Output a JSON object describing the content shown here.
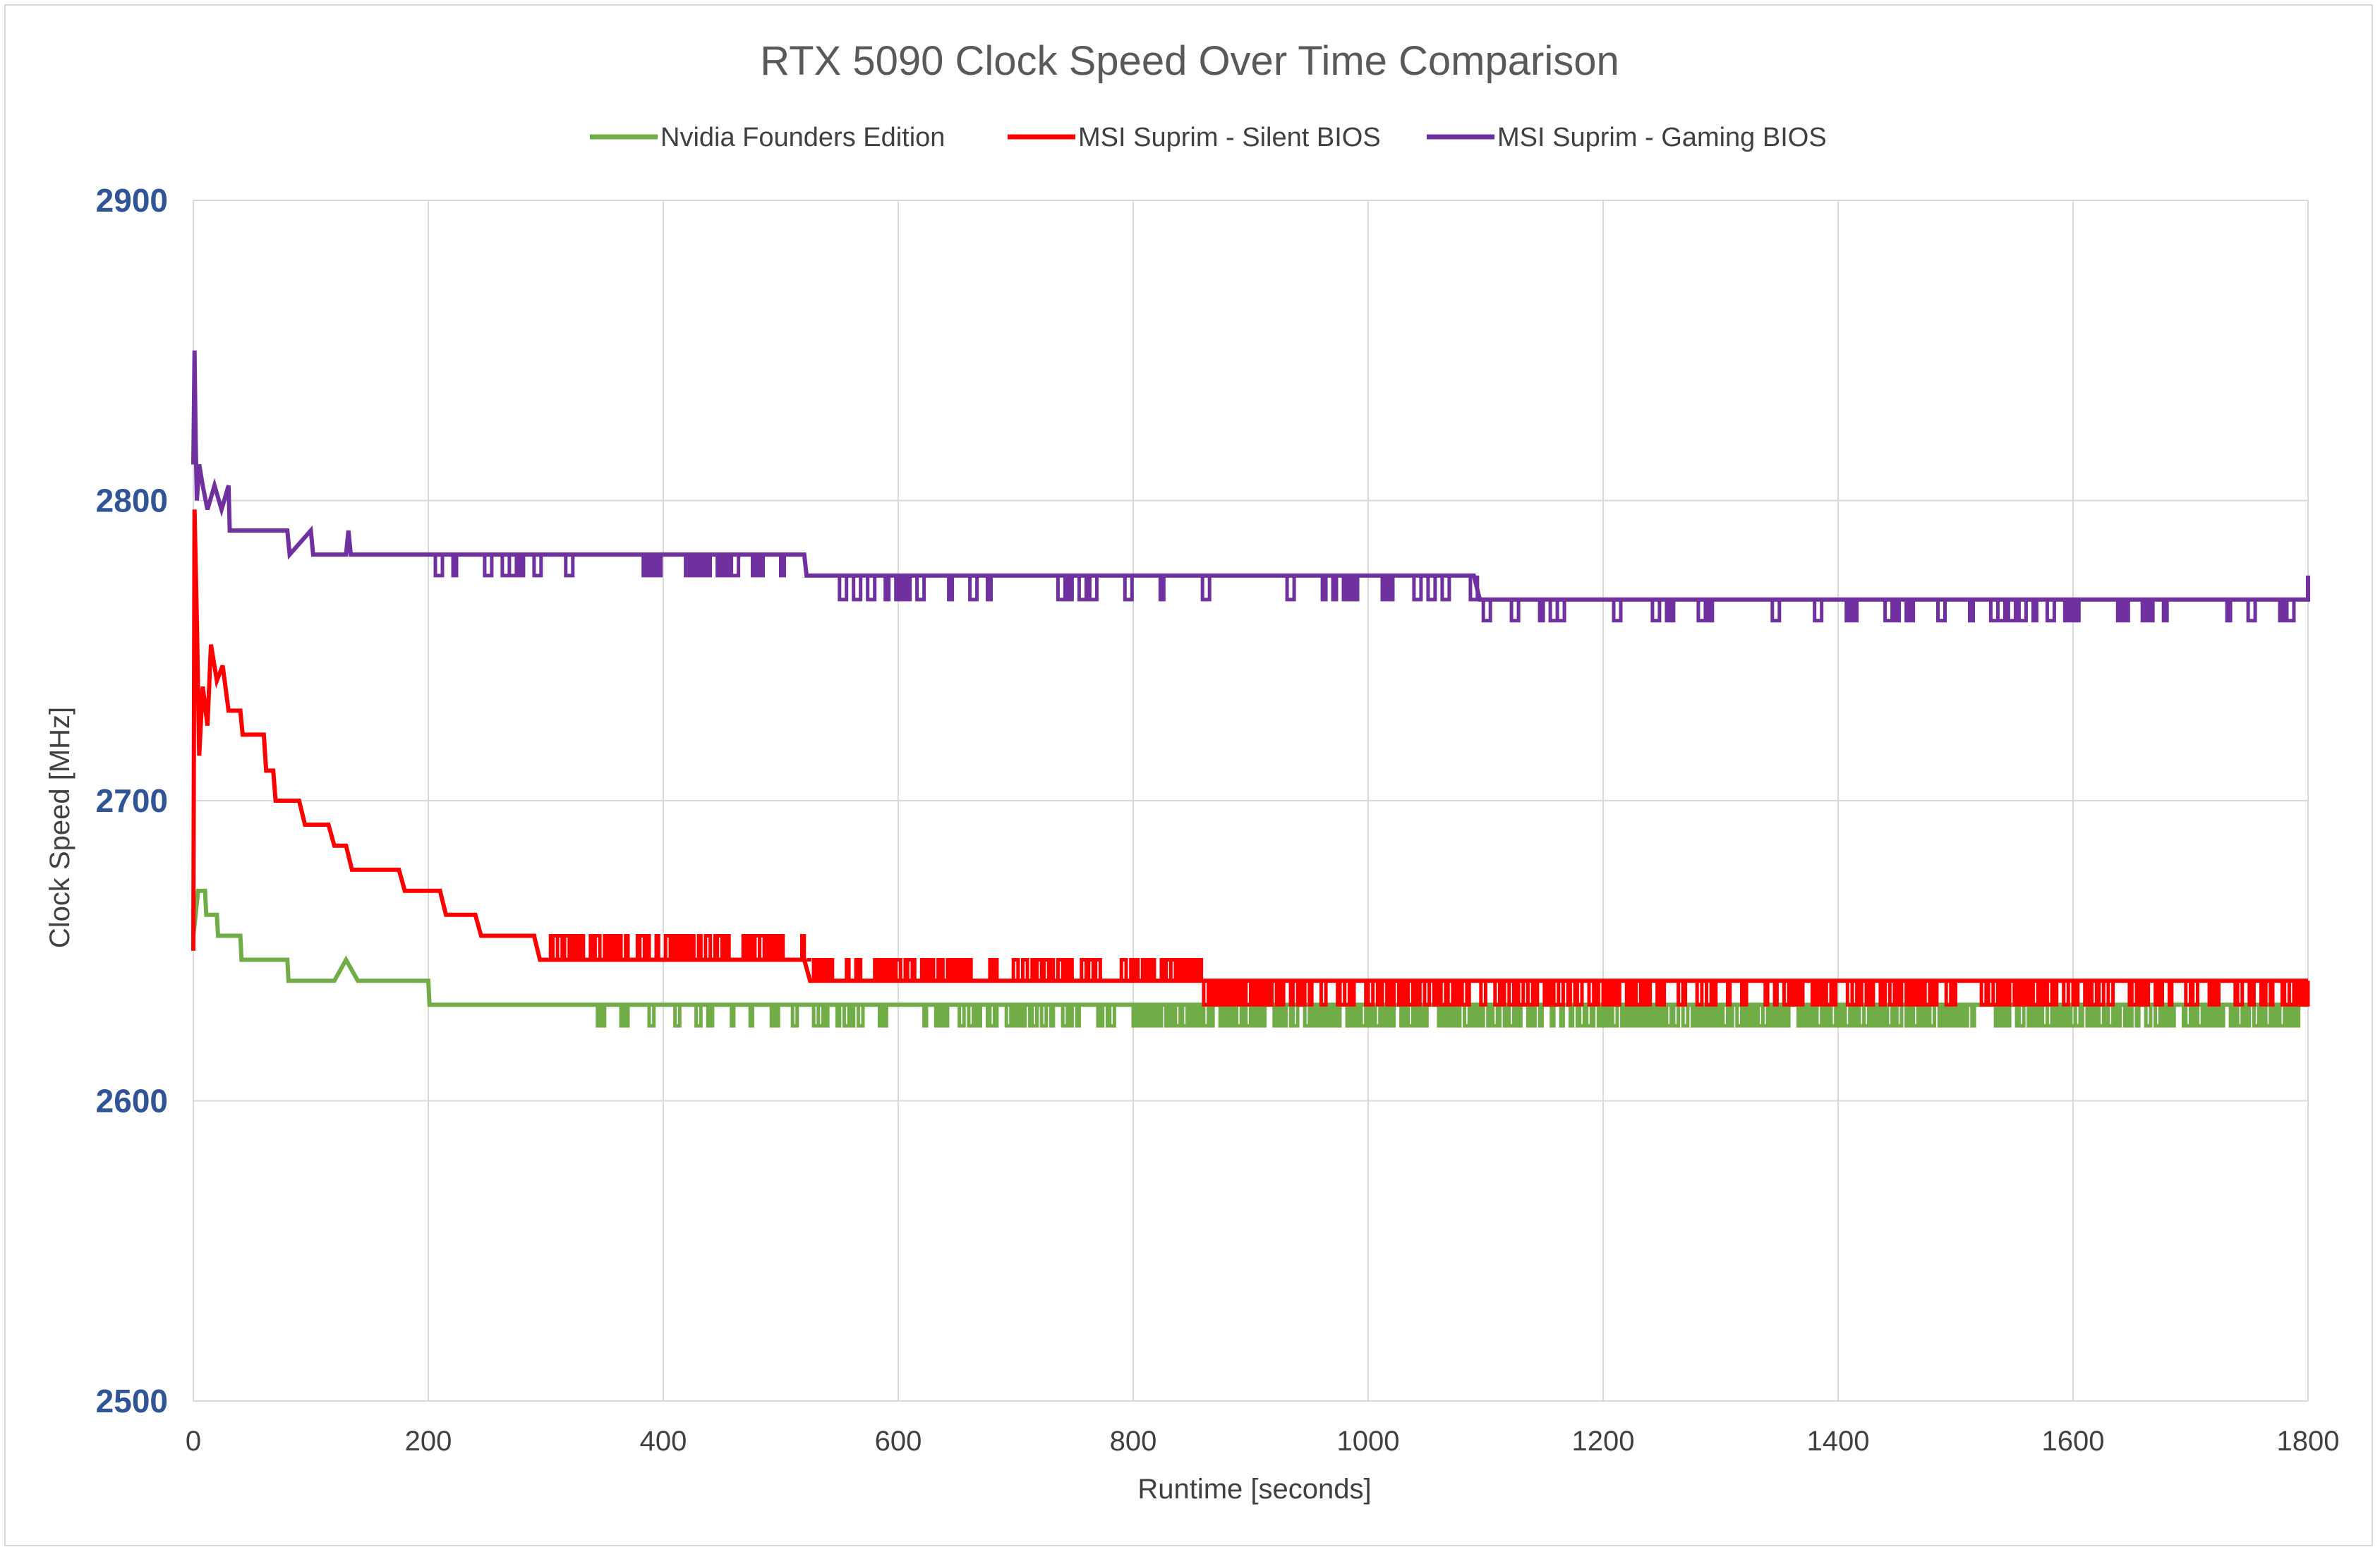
{
  "chart_data": {
    "type": "line",
    "title": "RTX 5090 Clock Speed Over Time Comparison",
    "xlabel": "Runtime [seconds]",
    "ylabel": "Clock Speed [MHz]",
    "xlim": [
      0,
      1800
    ],
    "ylim": [
      2500,
      2900
    ],
    "x_ticks": [
      0,
      200,
      400,
      600,
      800,
      1000,
      1200,
      1400,
      1600,
      1800
    ],
    "y_ticks": [
      2500,
      2600,
      2700,
      2800,
      2900
    ],
    "grid": true,
    "legend_position": "top",
    "series": [
      {
        "name": "Nvidia Founders Edition",
        "color": "#70ad47",
        "points": [
          [
            0,
            2655
          ],
          [
            2,
            2662
          ],
          [
            4,
            2670
          ],
          [
            10,
            2670
          ],
          [
            11,
            2662
          ],
          [
            20,
            2662
          ],
          [
            21,
            2655
          ],
          [
            40,
            2655
          ],
          [
            41,
            2647
          ],
          [
            80,
            2647
          ],
          [
            81,
            2640
          ],
          [
            120,
            2640
          ],
          [
            130,
            2647
          ],
          [
            140,
            2640
          ],
          [
            200,
            2640
          ],
          [
            201,
            2632
          ],
          [
            1800,
            2632
          ]
        ],
        "dips": {
          "low": 2625,
          "start": 250,
          "end": 1798,
          "step": 2,
          "density": [
            [
              250,
              0.08
            ],
            [
              600,
              0.3
            ],
            [
              900,
              0.55
            ],
            [
              1800,
              0.55
            ]
          ]
        }
      },
      {
        "name": "MSI Suprim - Silent BIOS",
        "color": "#ff0000",
        "points": [
          [
            0,
            2650
          ],
          [
            1,
            2797
          ],
          [
            3,
            2760
          ],
          [
            5,
            2715
          ],
          [
            8,
            2738
          ],
          [
            12,
            2725
          ],
          [
            15,
            2752
          ],
          [
            20,
            2740
          ],
          [
            25,
            2745
          ],
          [
            30,
            2730
          ],
          [
            40,
            2730
          ],
          [
            42,
            2722
          ],
          [
            60,
            2722
          ],
          [
            62,
            2710
          ],
          [
            68,
            2710
          ],
          [
            70,
            2700
          ],
          [
            90,
            2700
          ],
          [
            95,
            2692
          ],
          [
            115,
            2692
          ],
          [
            120,
            2685
          ],
          [
            130,
            2685
          ],
          [
            135,
            2677
          ],
          [
            175,
            2677
          ],
          [
            180,
            2670
          ],
          [
            200,
            2670
          ],
          [
            210,
            2670
          ],
          [
            215,
            2662
          ],
          [
            240,
            2662
          ],
          [
            245,
            2655
          ],
          [
            290,
            2655
          ],
          [
            295,
            2647
          ],
          [
            520,
            2647
          ],
          [
            525,
            2640
          ],
          [
            1800,
            2640
          ]
        ],
        "jitter": [
          {
            "start": 290,
            "end": 520,
            "alt": 2655,
            "step": 2
          },
          {
            "start": 520,
            "end": 860,
            "alt": 2647,
            "step": 2
          },
          {
            "start": 860,
            "end": 1800,
            "alt": 2632,
            "step": 2
          }
        ]
      },
      {
        "name": "MSI Suprim - Gaming BIOS",
        "color": "#7030a0",
        "points": [
          [
            0,
            2812
          ],
          [
            1,
            2850
          ],
          [
            2,
            2820
          ],
          [
            3,
            2800
          ],
          [
            5,
            2812
          ],
          [
            8,
            2805
          ],
          [
            12,
            2797
          ],
          [
            18,
            2805
          ],
          [
            24,
            2797
          ],
          [
            30,
            2805
          ],
          [
            31,
            2790
          ],
          [
            80,
            2790
          ],
          [
            82,
            2782
          ],
          [
            100,
            2790
          ],
          [
            102,
            2782
          ],
          [
            130,
            2782
          ],
          [
            132,
            2790
          ],
          [
            134,
            2782
          ],
          [
            200,
            2782
          ],
          [
            520,
            2782
          ],
          [
            522,
            2775
          ],
          [
            1090,
            2775
          ],
          [
            1095,
            2767
          ],
          [
            1800,
            2767
          ],
          [
            1800,
            2775
          ]
        ],
        "jitter": [
          {
            "start": 200,
            "end": 520,
            "alt": 2775,
            "step": 3
          },
          {
            "start": 520,
            "end": 1090,
            "alt": 2767,
            "step": 3
          },
          {
            "start": 1095,
            "end": 1798,
            "alt": 2760,
            "step": 3
          }
        ]
      }
    ]
  }
}
